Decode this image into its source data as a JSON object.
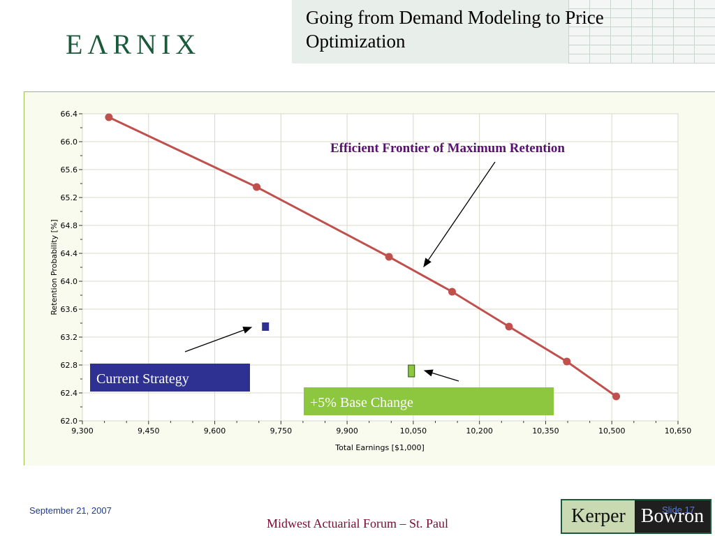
{
  "header": {
    "logo_text": "EΛRNIX",
    "title": "Going from Demand Modeling to Price Optimization"
  },
  "annotations": {
    "frontier_label": "Efficient Frontier of Maximum Retention",
    "current_strategy": "Current Strategy",
    "base_change": "+5% Base Change"
  },
  "footer": {
    "date": "September 21, 2007",
    "event": "Midwest Actuarial Forum – St. Paul",
    "slide": "Slide 17",
    "logo_left": "Kerper",
    "logo_right": "Bowron"
  },
  "colors": {
    "frontier": "#c0504d",
    "current_strategy": "#2e3192",
    "base_change": "#8dc63f",
    "frontier_label": "#5a0f73"
  },
  "chart_data": {
    "type": "scatter",
    "title": "",
    "xlabel": "Total Earnings [$1,000]",
    "ylabel": "Retention Probability [%]",
    "xlim": [
      9300,
      10650
    ],
    "ylim": [
      62.0,
      66.4
    ],
    "x_ticks": [
      "9,300",
      "9,450",
      "9,600",
      "9,750",
      "9,900",
      "10,050",
      "10,200",
      "10,350",
      "10,500",
      "10,650"
    ],
    "y_ticks": [
      "62.0",
      "62.4",
      "62.8",
      "63.2",
      "63.6",
      "64.0",
      "64.4",
      "64.8",
      "65.2",
      "65.6",
      "66.0",
      "66.4"
    ],
    "grid": true,
    "series": [
      {
        "name": "Efficient Frontier of Maximum Retention",
        "kind": "line",
        "x": [
          9360,
          9695,
          9995,
          10138,
          10267,
          10398,
          10510
        ],
        "y": [
          66.35,
          65.35,
          64.35,
          63.85,
          63.35,
          62.85,
          62.35
        ]
      },
      {
        "name": "Current Strategy",
        "kind": "point",
        "x": [
          9715
        ],
        "y": [
          63.35
        ]
      },
      {
        "name": "+5% Base Change",
        "kind": "point",
        "x": [
          10045
        ],
        "y": [
          62.72
        ]
      }
    ]
  }
}
